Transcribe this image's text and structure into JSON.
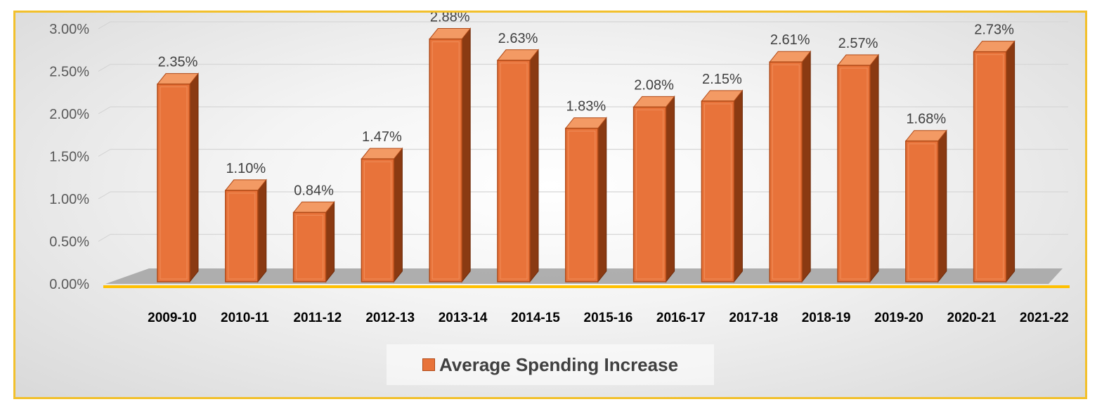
{
  "chart_data": {
    "type": "bar",
    "style": "3d-clustered-column",
    "categories": [
      "2009-10",
      "2010-11",
      "2011-12",
      "2012-13",
      "2013-14",
      "2014-15",
      "2015-16",
      "2016-17",
      "2017-18",
      "2018-19",
      "2019-20",
      "2020-21",
      "2021-22"
    ],
    "series": [
      {
        "name": "Average Spending Increase",
        "values": [
          2.35,
          1.1,
          0.84,
          1.47,
          2.88,
          2.63,
          1.83,
          2.08,
          2.15,
          2.61,
          2.57,
          1.68,
          2.73
        ],
        "labels": [
          "2.35%",
          "1.10%",
          "0.84%",
          "1.47%",
          "2.88%",
          "2.63%",
          "1.83%",
          "2.08%",
          "2.15%",
          "2.61%",
          "2.57%",
          "1.68%",
          "2.73%"
        ]
      }
    ],
    "ylim": [
      0,
      3.0
    ],
    "yticks": [
      "0.00%",
      "0.50%",
      "1.00%",
      "1.50%",
      "2.00%",
      "2.50%",
      "3.00%"
    ],
    "grid": true,
    "legend_position": "bottom",
    "colors": {
      "bar_front": "#e8733a",
      "bar_side": "#8a3a12",
      "bar_top": "#f39a64",
      "floor": "#a6a6a6",
      "axis": "#ffc000",
      "frame": "#f2c02c"
    }
  },
  "legend": {
    "label": "Average Spending Increase"
  }
}
